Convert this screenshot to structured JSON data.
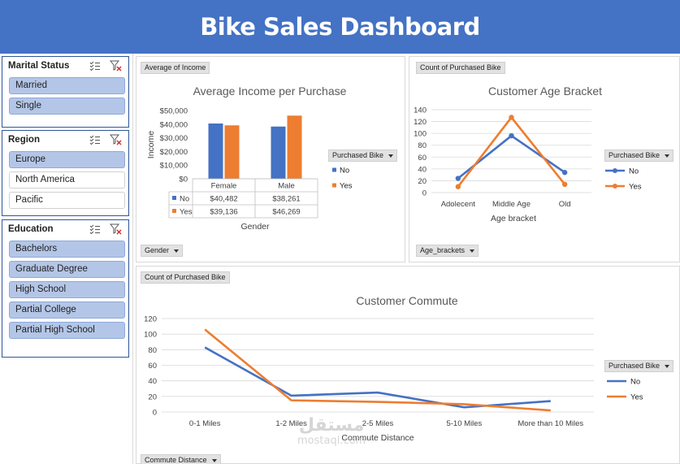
{
  "title": "Bike Sales Dashboard",
  "watermark": {
    "arabic": "مستقل",
    "latin": "mostaql.com"
  },
  "colors": {
    "banner": "#4472c4",
    "no": "#4472c4",
    "yes": "#ed7d31",
    "slicer_selected": "#b4c6e7"
  },
  "icons": {
    "multi_select": "multi-select-icon",
    "clear_filter": "clear-filter-icon"
  },
  "slicers": [
    {
      "title": "Marital Status",
      "items": [
        {
          "label": "Married",
          "selected": true
        },
        {
          "label": "Single",
          "selected": true
        }
      ]
    },
    {
      "title": "Region",
      "items": [
        {
          "label": "Europe",
          "selected": true
        },
        {
          "label": "North America",
          "selected": false
        },
        {
          "label": "Pacific",
          "selected": false
        }
      ]
    },
    {
      "title": "Education",
      "items": [
        {
          "label": "Bachelors",
          "selected": true
        },
        {
          "label": "Graduate Degree",
          "selected": true
        },
        {
          "label": "High School",
          "selected": true
        },
        {
          "label": "Partial College",
          "selected": true
        },
        {
          "label": "Partial High School",
          "selected": true
        }
      ]
    }
  ],
  "income_panel": {
    "value_button": "Average of Income",
    "axis_button": "Gender",
    "legend_button": "Purchased Bike"
  },
  "age_panel": {
    "value_button": "Count of Purchased Bike",
    "axis_button": "Age_brackets",
    "legend_button": "Purchased Bike"
  },
  "commute_panel": {
    "value_button": "Count of Purchased Bike",
    "axis_button": "Commute Distance",
    "legend_button": "Purchased Bike"
  },
  "chart_data": [
    {
      "type": "bar",
      "title": "Average Income per Purchase",
      "xlabel": "Gender",
      "ylabel": "Income",
      "categories": [
        "Female",
        "Male"
      ],
      "series": [
        {
          "name": "No",
          "values": [
            40482,
            38261
          ],
          "labels": [
            "$40,482",
            "$38,261"
          ]
        },
        {
          "name": "Yes",
          "values": [
            39136,
            46269
          ],
          "labels": [
            "$39,136",
            "$46,269"
          ]
        }
      ],
      "ylim": [
        0,
        50000
      ],
      "yticks": [
        "$0",
        "$10,000",
        "$20,000",
        "$30,000",
        "$40,000",
        "$50,000"
      ],
      "legend": "right",
      "data_table": true
    },
    {
      "type": "line",
      "title": "Customer Age Bracket",
      "xlabel": "Age bracket",
      "ylabel": "",
      "categories": [
        "Adolecent",
        "Middle Age",
        "Old"
      ],
      "series": [
        {
          "name": "No",
          "values": [
            24,
            96,
            34
          ]
        },
        {
          "name": "Yes",
          "values": [
            10,
            127,
            14
          ]
        }
      ],
      "ylim": [
        0,
        140
      ],
      "yticks": [
        "0",
        "20",
        "40",
        "60",
        "80",
        "100",
        "120",
        "140"
      ],
      "markers": true,
      "legend": "right"
    },
    {
      "type": "line",
      "title": "Customer Commute",
      "xlabel": "Commute Distance",
      "ylabel": "",
      "categories": [
        "0-1 Miles",
        "1-2 Miles",
        "2-5 Miles",
        "5-10 Miles",
        "More than 10 Miles"
      ],
      "series": [
        {
          "name": "No",
          "values": [
            83,
            21,
            25,
            6,
            14
          ]
        },
        {
          "name": "Yes",
          "values": [
            106,
            15,
            13,
            10,
            2
          ]
        }
      ],
      "ylim": [
        0,
        120
      ],
      "yticks": [
        "0",
        "20",
        "40",
        "60",
        "80",
        "100",
        "120"
      ],
      "markers": false,
      "legend": "right"
    }
  ]
}
